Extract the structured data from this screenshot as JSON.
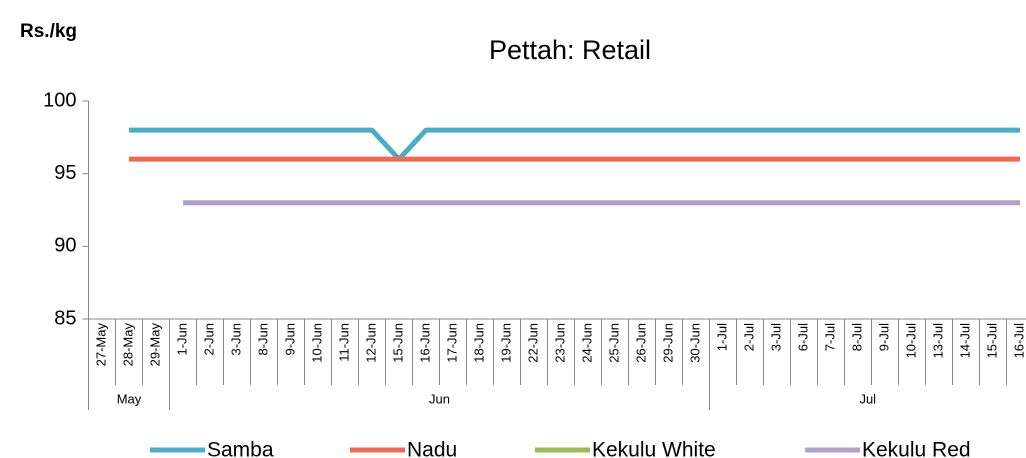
{
  "chart_data": {
    "type": "line",
    "title": "Pettah: Retail",
    "y_label": "Rs./kg",
    "categories": [
      "27-May",
      "28-May",
      "29-May",
      "1-Jun",
      "2-Jun",
      "3-Jun",
      "8-Jun",
      "9-Jun",
      "10-Jun",
      "11-Jun",
      "12-Jun",
      "15-Jun",
      "16-Jun",
      "17-Jun",
      "18-Jun",
      "19-Jun",
      "22-Jun",
      "23-Jun",
      "24-Jun",
      "25-Jun",
      "26-Jun",
      "29-Jun",
      "30-Jun",
      "1-Jul",
      "2-Jul",
      "3-Jul",
      "6-Jul",
      "7-Jul",
      "8-Jul",
      "9-Jul",
      "10-Jul",
      "13-Jul",
      "14-Jul",
      "15-Jul",
      "16-Jul"
    ],
    "x_groups": [
      "May",
      "Jun",
      "Jul"
    ],
    "series": [
      {
        "name": "Samba",
        "color": "#4bacc6",
        "values": [
          null,
          98,
          98,
          98,
          98,
          98,
          98,
          98,
          98,
          98,
          98,
          96,
          98,
          98,
          98,
          98,
          98,
          98,
          98,
          98,
          98,
          98,
          98,
          98,
          98,
          98,
          98,
          98,
          98,
          98,
          98,
          98,
          98,
          98,
          98
        ]
      },
      {
        "name": "Nadu",
        "color": "#ec6b56",
        "values": [
          null,
          96,
          96,
          96,
          96,
          96,
          96,
          96,
          96,
          96,
          96,
          96,
          96,
          96,
          96,
          96,
          96,
          96,
          96,
          96,
          96,
          96,
          96,
          96,
          96,
          96,
          96,
          96,
          96,
          96,
          96,
          96,
          96,
          96,
          96
        ]
      },
      {
        "name": "Kekulu White",
        "color": "#9bbb59",
        "values": [
          null,
          null,
          null,
          null,
          null,
          null,
          null,
          null,
          null,
          null,
          null,
          null,
          null,
          null,
          null,
          null,
          null,
          null,
          null,
          null,
          null,
          null,
          null,
          null,
          null,
          null,
          null,
          null,
          null,
          null,
          null,
          null,
          null,
          null,
          null
        ]
      },
      {
        "name": "Kekulu Red",
        "color": "#b3a2c7",
        "values": [
          null,
          null,
          null,
          93,
          93,
          93,
          93,
          93,
          93,
          93,
          93,
          93,
          93,
          93,
          93,
          93,
          93,
          93,
          93,
          93,
          93,
          93,
          93,
          93,
          93,
          93,
          93,
          93,
          93,
          93,
          93,
          93,
          93,
          93,
          93
        ]
      }
    ],
    "ylim": [
      85,
      100
    ],
    "yticks": [
      85,
      90,
      95,
      100
    ],
    "grid": false,
    "legend": "bottom"
  }
}
